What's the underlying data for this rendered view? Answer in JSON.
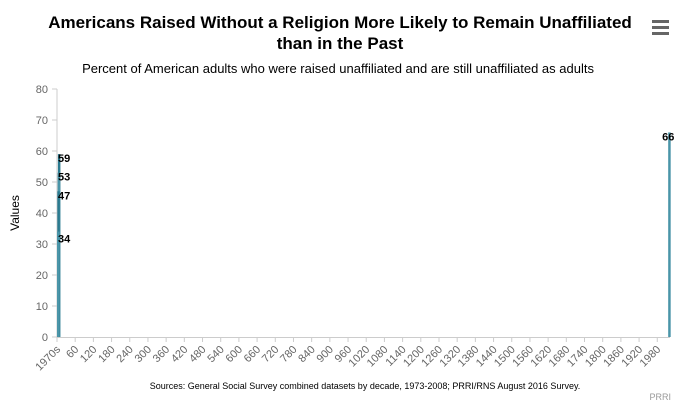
{
  "chart_data": {
    "type": "bar",
    "title": "Americans Raised Without a Religion More Likely to Remain Unaffiliated",
    "title_line2": "than in the Past",
    "subtitle": "Percent of American adults who were raised unaffiliated and are still unaffiliated as adults",
    "ylabel": "Values",
    "ylim": [
      0,
      80
    ],
    "yticks": [
      0,
      10,
      20,
      30,
      40,
      50,
      60,
      70,
      80
    ],
    "xticks": [
      "1970s",
      "60",
      "120",
      "180",
      "240",
      "300",
      "360",
      "420",
      "480",
      "540",
      "600",
      "660",
      "720",
      "780",
      "840",
      "900",
      "960",
      "1020",
      "1080",
      "1140",
      "1200",
      "1260",
      "1320",
      "1380",
      "1440",
      "1500",
      "1560",
      "1620",
      "1680",
      "1740",
      "1800",
      "1860",
      "1920",
      "1980"
    ],
    "xlim": [
      0,
      2022
    ],
    "points": [
      {
        "x": 0,
        "y": 34
      },
      {
        "x": 1,
        "y": 47
      },
      {
        "x": 2,
        "y": 53
      },
      {
        "x": 3,
        "y": 59
      },
      {
        "x": 2016,
        "y": 66
      }
    ],
    "color": "#2f7ed8",
    "bar_color": "#2b7a8f",
    "grid": false,
    "source": "Sources: General Social Survey combined datasets by decade, 1973-2008; PRRI/RNS August 2016 Survey.",
    "credit": "PRRI"
  },
  "menu_icon": "hamburger-menu-icon"
}
